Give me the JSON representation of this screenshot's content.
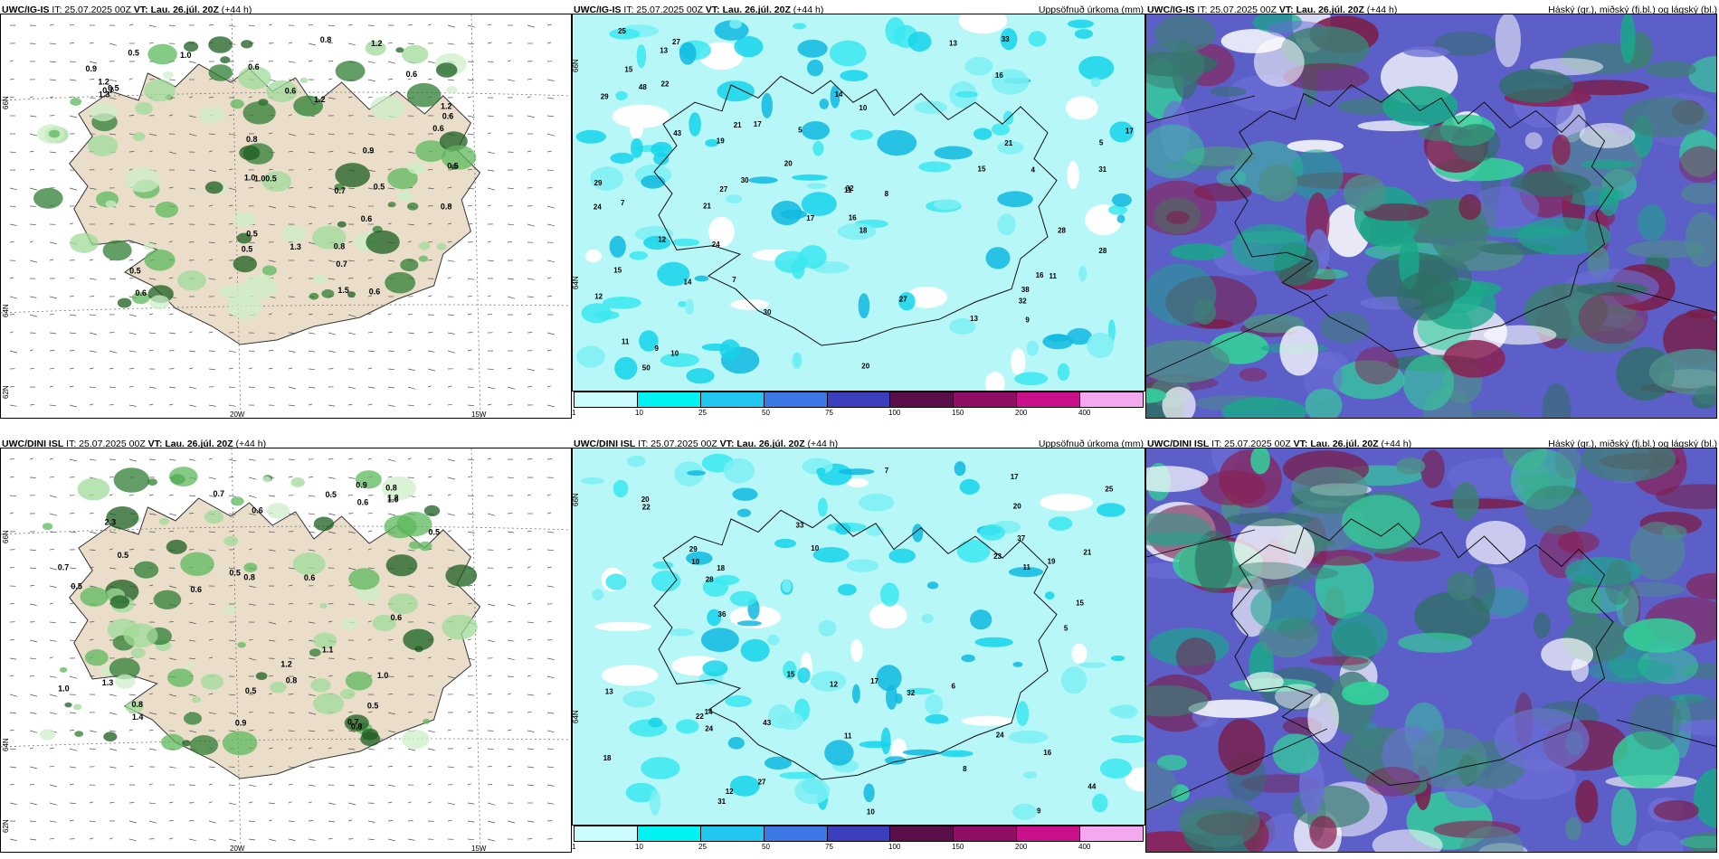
{
  "panels": [
    {
      "id": "r1c1",
      "model": "UWC/IG-IS",
      "it": "IT: 25.07.2025 00Z",
      "vt_label": "VT:",
      "vt": "Lau. 26.júl. 20Z",
      "lead": "(+44 h)",
      "right": "",
      "kind": "green",
      "numbers": [
        "0.6",
        "1.2",
        "0.7",
        "1.0",
        "0.5",
        "0.5",
        "0.6",
        "1.3",
        "0.7",
        "1.2",
        "1.2",
        "0.5",
        "0.6",
        "0.7",
        "0.8",
        "1.0",
        "0.9",
        "0.5",
        "0.6",
        "1.3",
        "0.6",
        "1.0",
        "0.5",
        "0.6",
        "0.8",
        "0.8",
        "0.6",
        "1.5",
        "0.6",
        "0.5",
        "0.8",
        "0.5",
        "1.2",
        "0.9",
        "0.5"
      ],
      "axis": {
        "lat_top": "66N",
        "lat_mid": "64N",
        "lat_bot": "62N",
        "lon_a": "20W",
        "lon_b": "15W"
      }
    },
    {
      "id": "r1c2",
      "model": "UWC/IG-IS",
      "it": "IT: 25.07.2025 00Z",
      "vt_label": "VT:",
      "vt": "Lau. 26.júl. 20Z",
      "lead": "(+44 h)",
      "right": "Uppsöfnuð úrkoma (mm)",
      "kind": "precip",
      "numbers": [
        "5",
        "16",
        "50",
        "28",
        "19",
        "13",
        "14",
        "11",
        "27",
        "32",
        "29",
        "10",
        "7",
        "15",
        "20",
        "43",
        "30",
        "18",
        "16",
        "12",
        "4",
        "27",
        "9",
        "32",
        "21",
        "13",
        "33",
        "17",
        "10",
        "7",
        "38",
        "11",
        "24",
        "17",
        "12",
        "31",
        "27",
        "48",
        "21",
        "28",
        "25",
        "22",
        "16",
        "24",
        "15",
        "17",
        "5",
        "30",
        "29",
        "8",
        "14",
        "9",
        "20",
        "11",
        "13",
        "15",
        "21"
      ],
      "axis": {
        "lat_top": "66N",
        "lat_mid": "64N"
      }
    },
    {
      "id": "r1c3",
      "model": "UWC/IG-IS",
      "it": "IT: 25.07.2025 00Z",
      "vt_label": "VT:",
      "vt": "Lau. 26.júl. 20Z",
      "lead": "(+44 h)",
      "right": "Háský (gr.), miðský (fj.bl.) og lágský (bl.)",
      "kind": "cloud",
      "numbers": [],
      "axis": {}
    },
    {
      "id": "r2c1",
      "model": "UWC/DINI ISL",
      "it": "IT: 25.07.2025 00Z",
      "vt_label": "VT:",
      "vt": "Lau. 26.júl. 20Z",
      "lead": "(+44 h)",
      "right": "",
      "kind": "green",
      "numbers": [
        "0.5",
        "0.8",
        "0.9",
        "1.2",
        "1.0",
        "2.3",
        "0.6",
        "0.8",
        "0.5",
        "0.5",
        "1.3",
        "1.2",
        "0.8",
        "0.6",
        "0.6",
        "0.5",
        "1.0",
        "0.7",
        "1.0",
        "0.5",
        "0.8",
        "0.7",
        "0.6",
        "0.5",
        "0.9",
        "0.7",
        "1.1",
        "0.6",
        "0.5",
        "0.8",
        "1.4"
      ],
      "axis": {
        "lat_top": "66N",
        "lat_mid": "64N",
        "lat_bot": "62N",
        "lon_a": "20W",
        "lon_b": "15W"
      }
    },
    {
      "id": "r2c2",
      "model": "UWC/DINI ISL",
      "it": "IT: 25.07.2025 00Z",
      "vt_label": "VT:",
      "vt": "Lau. 26.júl. 20Z",
      "lead": "(+44 h)",
      "right": "Uppsöfnuð úrkoma (mm)",
      "kind": "precip",
      "numbers": [
        "11",
        "10",
        "14",
        "12",
        "22",
        "25",
        "17",
        "23",
        "13",
        "15",
        "29",
        "24",
        "27",
        "9",
        "11",
        "8",
        "18",
        "10",
        "16",
        "22",
        "24",
        "20",
        "33",
        "15",
        "17",
        "28",
        "21",
        "31",
        "44",
        "32",
        "37",
        "19",
        "12",
        "20",
        "43",
        "36",
        "7",
        "6",
        "5",
        "10",
        "18"
      ],
      "axis": {
        "lat_top": "66N",
        "lat_mid": "64N"
      }
    },
    {
      "id": "r2c3",
      "model": "UWC/DINI ISL",
      "it": "IT: 25.07.2025 00Z",
      "vt_label": "VT:",
      "vt": "Lau. 26.júl. 20Z",
      "lead": "(+44 h)",
      "right": "Háský (gr.), miðský (fj.bl.) og lágský (bl.)",
      "kind": "cloud",
      "numbers": [],
      "axis": {}
    }
  ],
  "colorbar": {
    "ticks": [
      "1",
      "10",
      "25",
      "50",
      "75",
      "100",
      "150",
      "200",
      "400"
    ],
    "colors": [
      "#c9fbff",
      "#00f2f2",
      "#22c7ef",
      "#3a78e6",
      "#3b3fbd",
      "#5a0f4a",
      "#8f0f67",
      "#c8118a",
      "#f4a8ef"
    ]
  }
}
